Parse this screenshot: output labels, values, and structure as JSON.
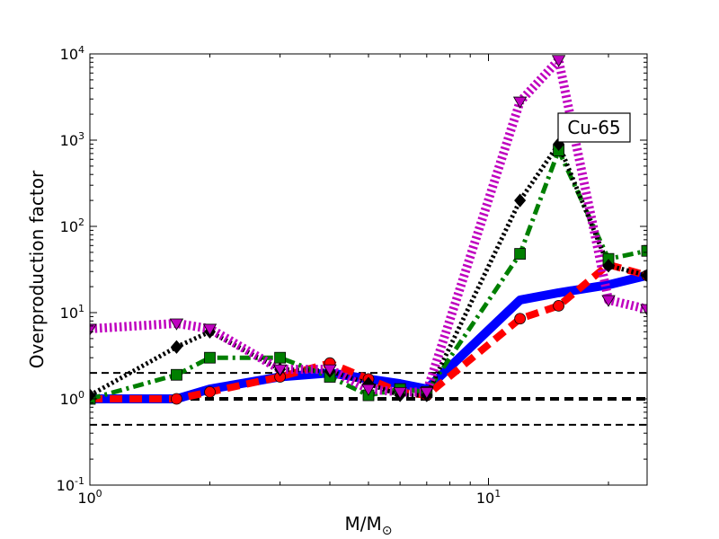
{
  "chart_data": {
    "type": "line",
    "title": "",
    "xlabel_main": "M/M",
    "xlabel_sub": "⊙",
    "ylabel": "Overproduction factor",
    "xscale": "log",
    "yscale": "log",
    "xlim": [
      1,
      25
    ],
    "ylim": [
      0.1,
      10000
    ],
    "x_ticks": [
      {
        "value": 1,
        "base": "10",
        "exp": "0"
      },
      {
        "value": 10,
        "base": "10",
        "exp": "1"
      }
    ],
    "y_ticks": [
      {
        "value": 0.1,
        "base": "10",
        "exp": "-1"
      },
      {
        "value": 1,
        "base": "10",
        "exp": "0"
      },
      {
        "value": 10,
        "base": "10",
        "exp": "1"
      },
      {
        "value": 100,
        "base": "10",
        "exp": "2"
      },
      {
        "value": 1000,
        "base": "10",
        "exp": "3"
      },
      {
        "value": 10000,
        "base": "10",
        "exp": "4"
      }
    ],
    "annotation": "Cu-65",
    "reference_lines": [
      {
        "y": 2,
        "style": "dashed-thin"
      },
      {
        "y": 1,
        "style": "dashed-thick"
      },
      {
        "y": 0.5,
        "style": "dashed-thin"
      }
    ],
    "series": [
      {
        "color": "#0000ff",
        "line": "solid",
        "width": 10,
        "marker": "none",
        "x": [
          1,
          1.65,
          2,
          3,
          4,
          5,
          6,
          7,
          12,
          15,
          20,
          25
        ],
        "y": [
          1.0,
          1.0,
          1.3,
          1.8,
          2.0,
          1.7,
          1.5,
          1.3,
          14,
          17,
          21,
          27
        ]
      },
      {
        "color": "#ff0000",
        "line": "dashed",
        "width": 8,
        "marker": "circle",
        "x": [
          1,
          1.65,
          2,
          3,
          4,
          5,
          6,
          7,
          12,
          15,
          20,
          25
        ],
        "y": [
          1.0,
          1.0,
          1.2,
          1.8,
          2.6,
          1.7,
          1.2,
          1.1,
          8.5,
          12,
          36,
          27
        ]
      },
      {
        "color": "#007f00",
        "line": "dashdot",
        "width": 5,
        "marker": "square",
        "x": [
          1,
          1.65,
          2,
          3,
          4,
          5,
          6,
          7,
          12,
          15,
          20,
          25
        ],
        "y": [
          1.0,
          1.9,
          3.0,
          3.0,
          1.8,
          1.1,
          1.3,
          1.2,
          48,
          760,
          42,
          52
        ]
      },
      {
        "color": "#000000",
        "line": "dotted",
        "width": 5,
        "marker": "diamond",
        "x": [
          1,
          1.65,
          2,
          3,
          4,
          5,
          6,
          7,
          12,
          15,
          20,
          25
        ],
        "y": [
          1.1,
          4.0,
          6.0,
          2.2,
          2.1,
          1.5,
          1.1,
          1.1,
          200,
          900,
          35,
          27
        ]
      },
      {
        "color": "#bf00bf",
        "line": "dotted",
        "width": 10,
        "marker": "triangle-down",
        "x": [
          1,
          1.65,
          2,
          3,
          4,
          5,
          6,
          7,
          12,
          15,
          20,
          25
        ],
        "y": [
          6.5,
          7.5,
          6.5,
          2.2,
          2.2,
          1.3,
          1.2,
          1.2,
          2800,
          8500,
          14,
          11
        ]
      }
    ]
  }
}
